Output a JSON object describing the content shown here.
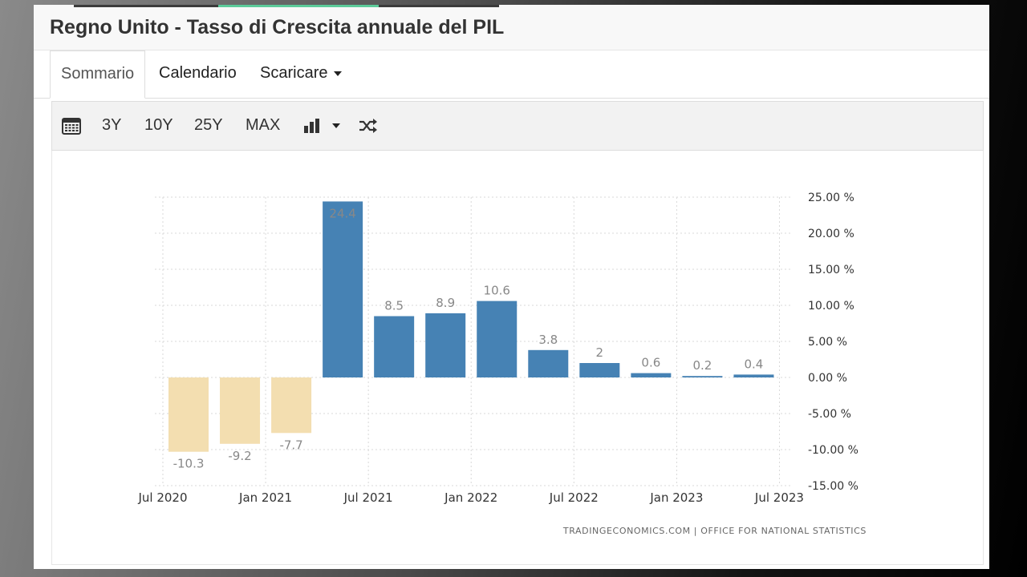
{
  "title": "Regno Unito - Tasso di Crescita annuale del PIL",
  "tabs": [
    {
      "label": "Sommario",
      "active": true
    },
    {
      "label": "Calendario",
      "active": false
    },
    {
      "label": "Scaricare",
      "active": false,
      "dropdown": true
    }
  ],
  "toolbar": {
    "calendar_icon": "calendar-icon",
    "ranges": [
      "3Y",
      "10Y",
      "25Y",
      "MAX"
    ],
    "chart_type_icon": "bar-chart-icon",
    "shuffle_icon": "shuffle-icon"
  },
  "chart_data": {
    "type": "bar",
    "categories": [
      "Q3 2020",
      "Q4 2020",
      "Q1 2021",
      "Q2 2021",
      "Q3 2021",
      "Q4 2021",
      "Q1 2022",
      "Q2 2022",
      "Q3 2022",
      "Q4 2022",
      "Q1 2023",
      "Q2 2023"
    ],
    "values": [
      -10.3,
      -9.2,
      -7.7,
      24.4,
      8.5,
      8.9,
      10.6,
      3.8,
      2,
      0.6,
      0.2,
      0.4
    ],
    "value_labels": [
      "-10.3",
      "-9.2",
      "-7.7",
      "24.4",
      "8.5",
      "8.9",
      "10.6",
      "3.8",
      "2",
      "0.6",
      "0.2",
      "0.4"
    ],
    "x_tick_labels": [
      "Jul 2020",
      "Jan 2021",
      "Jul 2021",
      "Jan 2022",
      "Jul 2022",
      "Jan 2023",
      "Jul 2023"
    ],
    "y_ticks": [
      25,
      20,
      15,
      10,
      5,
      0,
      -5,
      -10,
      -15
    ],
    "y_tick_labels": [
      "25.00 %",
      "20.00 %",
      "15.00 %",
      "10.00 %",
      "5.00 %",
      "0.00 %",
      "-5.00 %",
      "-10.00 %",
      "-15.00 %"
    ],
    "ylim": [
      -15,
      25
    ],
    "y_axis_side": "right",
    "grid": true,
    "positive_color": "#4682b4",
    "negative_color": "#f3deb0",
    "label_color": "#888888",
    "source": "TRADINGECONOMICS.COM | OFFICE FOR NATIONAL STATISTICS"
  }
}
